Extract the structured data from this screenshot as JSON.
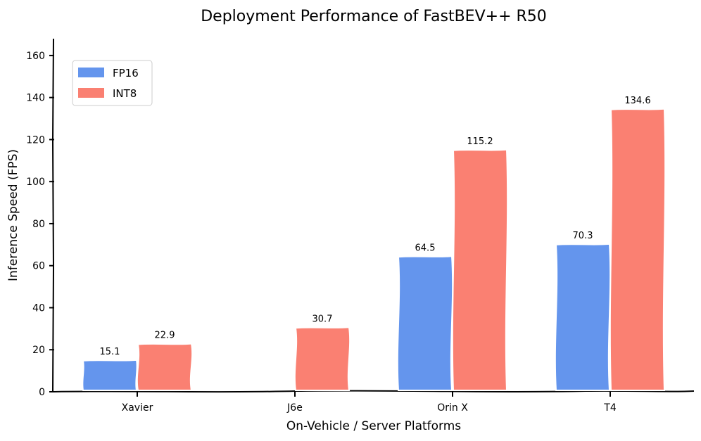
{
  "chart_data": {
    "type": "bar",
    "title": "Deployment Performance of FastBEV++ R50",
    "xlabel": "On-Vehicle / Server Platforms",
    "ylabel": "Inference Speed (FPS)",
    "categories": [
      "Xavier",
      "J6e",
      "Orin X",
      "T4"
    ],
    "series": [
      {
        "name": "FP16",
        "color": "#6495ED",
        "values": [
          15.1,
          null,
          64.5,
          70.3
        ],
        "labels": [
          "15.1",
          "",
          "64.5",
          "70.3"
        ]
      },
      {
        "name": "INT8",
        "color": "#FA8072",
        "values": [
          22.9,
          30.7,
          115.2,
          134.6
        ],
        "labels": [
          "22.9",
          "30.7",
          "115.2",
          "134.6"
        ]
      }
    ],
    "ylim": [
      0,
      168
    ],
    "yticks": [
      0,
      20,
      40,
      60,
      80,
      100,
      120,
      140,
      160
    ],
    "ytick_labels": [
      "0",
      "20",
      "40",
      "60",
      "80",
      "100",
      "120",
      "140",
      "160"
    ],
    "grid": false,
    "legend_position": "top-left"
  }
}
